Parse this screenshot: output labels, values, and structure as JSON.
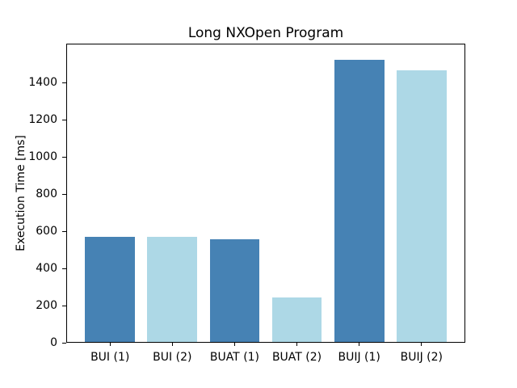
{
  "chart_data": {
    "type": "bar",
    "title": "Long NXOpen Program",
    "xlabel": "",
    "ylabel": "Execution Time [ms]",
    "categories": [
      "BUI (1)",
      "BUI (2)",
      "BUAT (1)",
      "BUAT (2)",
      "BUIJ (1)",
      "BUIJ (2)"
    ],
    "values": [
      570,
      570,
      556,
      242,
      1528,
      1468
    ],
    "bar_colors": [
      "#4682b4",
      "#add8e6",
      "#4682b4",
      "#add8e6",
      "#4682b4",
      "#add8e6"
    ],
    "ylim": [
      0,
      1610
    ],
    "yticks": [
      0,
      200,
      400,
      600,
      800,
      1000,
      1200,
      1400
    ],
    "bar_width_fraction": 0.8,
    "grid": false,
    "legend_position": "none",
    "spine_color": "#000000",
    "tick_color": "#000000",
    "text_color": "#000000",
    "background_color": "#ffffff"
  }
}
